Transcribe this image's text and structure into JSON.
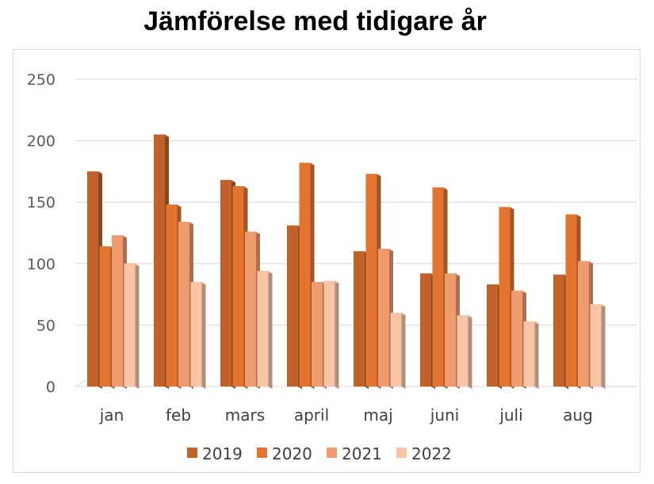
{
  "chart_data": {
    "type": "bar",
    "title": "Jämförelse med tidigare år",
    "xlabel": "",
    "ylabel": "",
    "ylim": [
      0,
      250
    ],
    "yticks": [
      0,
      50,
      100,
      150,
      200,
      250
    ],
    "grid": true,
    "legend_position": "bottom",
    "categories": [
      "jan",
      "feb",
      "mars",
      "april",
      "maj",
      "juni",
      "juli",
      "aug"
    ],
    "series": [
      {
        "name": "2019",
        "color": "#C0622A",
        "values": [
          175,
          205,
          168,
          131,
          110,
          92,
          83,
          91
        ]
      },
      {
        "name": "2020",
        "color": "#E27430",
        "values": [
          114,
          148,
          163,
          182,
          173,
          162,
          146,
          140
        ]
      },
      {
        "name": "2021",
        "color": "#EF9B6E",
        "values": [
          123,
          134,
          126,
          85,
          112,
          92,
          78,
          102
        ]
      },
      {
        "name": "2022",
        "color": "#F7C4A6",
        "values": [
          100,
          85,
          94,
          86,
          60,
          58,
          53,
          67
        ]
      }
    ]
  }
}
